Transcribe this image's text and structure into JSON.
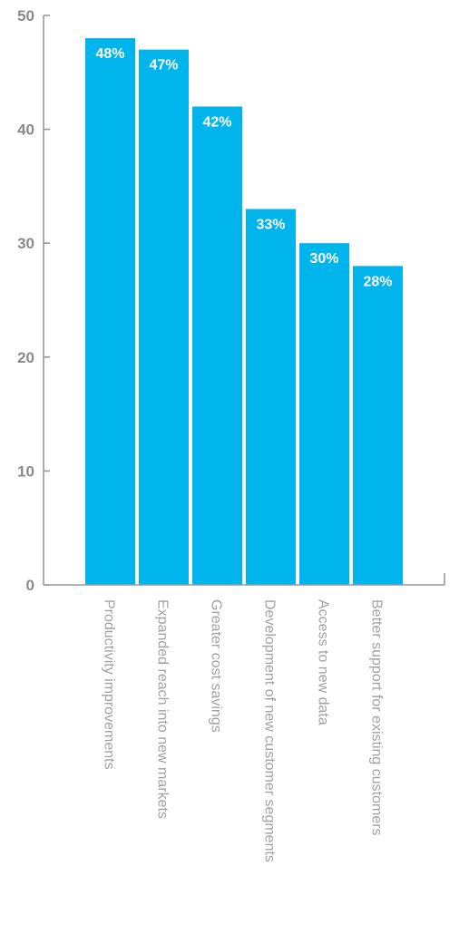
{
  "chart_data": {
    "type": "bar",
    "categories": [
      "Productivity improvements",
      "Expanded reach into new markets",
      "Greater cost savings",
      "Development of new customer segments",
      "Access to new data",
      "Better support for existing customers"
    ],
    "values": [
      48,
      47,
      42,
      33,
      30,
      28
    ],
    "data_labels": [
      "48%",
      "47%",
      "42%",
      "33%",
      "30%",
      "28%"
    ],
    "title": "",
    "xlabel": "",
    "ylabel": "",
    "ylim": [
      0,
      50
    ],
    "yticks": [
      0,
      10,
      20,
      30,
      40,
      50
    ],
    "grid": false,
    "colors": {
      "bar": "#00b4ec",
      "axis": "#999999",
      "tick_text": "#8a8a8a",
      "category_text": "#a3a3a3",
      "data_label_text": "#ffffff"
    }
  }
}
